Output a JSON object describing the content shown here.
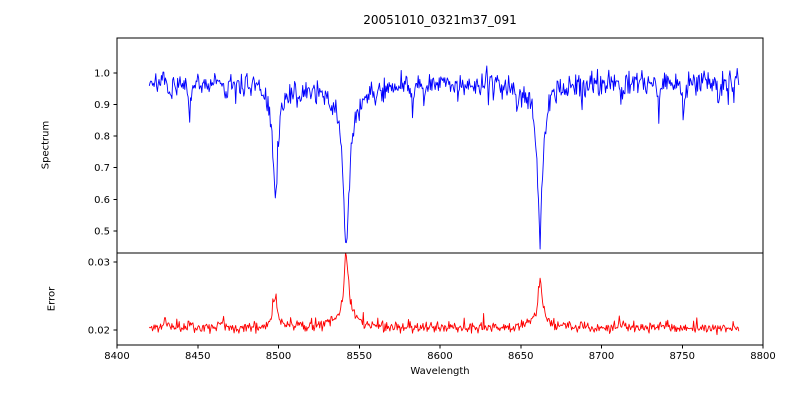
{
  "chart_data": {
    "type": "line",
    "title": "20051010_0321m37_091",
    "xlabel": "Wavelength",
    "xlim": [
      8400,
      8800
    ],
    "x_range": [
      8420,
      8785
    ],
    "x_step": 0.5,
    "grid": false,
    "legend": "none",
    "x_ticks": [
      {
        "value": 8400,
        "label": "8400"
      },
      {
        "value": 8450,
        "label": "8450"
      },
      {
        "value": 8500,
        "label": "8500"
      },
      {
        "value": 8550,
        "label": "8550"
      },
      {
        "value": 8600,
        "label": "8600"
      },
      {
        "value": 8650,
        "label": "8650"
      },
      {
        "value": 8700,
        "label": "8700"
      },
      {
        "value": 8750,
        "label": "8750"
      },
      {
        "value": 8800,
        "label": "8800"
      }
    ],
    "panels": [
      {
        "name": "spectrum",
        "ylabel": "Spectrum",
        "color": "#0000ff",
        "ylim": [
          0.43,
          1.11
        ],
        "y_ticks": [
          {
            "value": 0.5,
            "label": "0.5"
          },
          {
            "value": 0.6,
            "label": "0.6"
          },
          {
            "value": 0.7,
            "label": "0.7"
          },
          {
            "value": 0.8,
            "label": "0.8"
          },
          {
            "value": 0.9,
            "label": "0.9"
          },
          {
            "value": 1.0,
            "label": "1.0"
          }
        ],
        "baseline": 0.975,
        "noise_std": 0.016,
        "noise_ramp": 0.4,
        "spike_prob": 0.02,
        "spike_amp": -0.05,
        "seed": 7,
        "features": [
          {
            "center": 8433,
            "amp": -0.06,
            "gamma": 1.0
          },
          {
            "center": 8445,
            "amp": -0.1,
            "gamma": 1.2
          },
          {
            "center": 8468,
            "amp": -0.05,
            "gamma": 0.9
          },
          {
            "center": 8498,
            "amp": -0.31,
            "gamma": 1.7
          },
          {
            "center": 8498,
            "amp": -0.05,
            "gamma": 6
          },
          {
            "center": 8514,
            "amp": -0.05,
            "gamma": 0.9
          },
          {
            "center": 8542,
            "amp": -0.46,
            "gamma": 2.1
          },
          {
            "center": 8542,
            "amp": -0.07,
            "gamma": 14
          },
          {
            "center": 8583,
            "amp": -0.05,
            "gamma": 0.9
          },
          {
            "center": 8611,
            "amp": -0.04,
            "gamma": 0.8
          },
          {
            "center": 8648,
            "amp": -0.05,
            "gamma": 0.9
          },
          {
            "center": 8662,
            "amp": -0.43,
            "gamma": 1.9
          },
          {
            "center": 8662,
            "amp": -0.05,
            "gamma": 8
          },
          {
            "center": 8688,
            "amp": -0.06,
            "gamma": 1.0
          },
          {
            "center": 8713,
            "amp": -0.05,
            "gamma": 0.9
          },
          {
            "center": 8736,
            "amp": -0.06,
            "gamma": 1.0
          },
          {
            "center": 8751,
            "amp": -0.09,
            "gamma": 1.2
          },
          {
            "center": 8772,
            "amp": -0.06,
            "gamma": 1.0
          }
        ]
      },
      {
        "name": "error",
        "ylabel": "Error",
        "color": "#ff0000",
        "ylim": [
          0.0178,
          0.0313
        ],
        "y_ticks": [
          {
            "value": 0.02,
            "label": "0.02"
          },
          {
            "value": 0.03,
            "label": "0.03"
          }
        ],
        "baseline": 0.0203,
        "noise_std": 0.00035,
        "noise_ramp": 0.2,
        "spike_prob": 0.03,
        "spike_amp": 0.0012,
        "seed": 11,
        "features": [
          {
            "center": 8430,
            "amp": 0.0012,
            "gamma": 1.2
          },
          {
            "center": 8445,
            "amp": 0.0009,
            "gamma": 1.0
          },
          {
            "center": 8465,
            "amp": 0.0014,
            "gamma": 1.0
          },
          {
            "center": 8498,
            "amp": 0.0048,
            "gamma": 1.6
          },
          {
            "center": 8514,
            "amp": 0.0006,
            "gamma": 0.9
          },
          {
            "center": 8542,
            "amp": 0.0092,
            "gamma": 1.8
          },
          {
            "center": 8542,
            "amp": 0.0012,
            "gamma": 9
          },
          {
            "center": 8662,
            "amp": 0.0062,
            "gamma": 1.7
          },
          {
            "center": 8662,
            "amp": 0.0008,
            "gamma": 7
          },
          {
            "center": 8688,
            "amp": 0.0007,
            "gamma": 1.0
          },
          {
            "center": 8715,
            "amp": 0.0007,
            "gamma": 1.0
          },
          {
            "center": 8740,
            "amp": 0.0009,
            "gamma": 1.0
          }
        ]
      }
    ]
  }
}
